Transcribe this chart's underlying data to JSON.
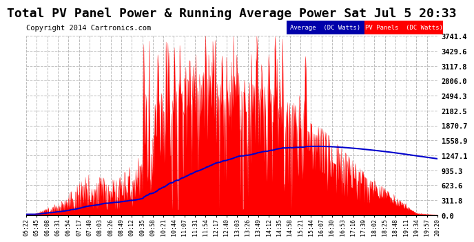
{
  "title": "Total PV Panel Power & Running Average Power Sat Jul 5 20:33",
  "copyright": "Copyright 2014 Cartronics.com",
  "ylabel_right_ticks": [
    0.0,
    311.8,
    623.6,
    935.3,
    1247.1,
    1558.9,
    1870.7,
    2182.5,
    2494.3,
    2806.0,
    3117.8,
    3429.6,
    3741.4
  ],
  "ymax": 3741.4,
  "bg_color": "#ffffff",
  "plot_bg_color": "#ffffff",
  "grid_color": "#bbbbbb",
  "pv_color": "#ff0000",
  "avg_color": "#0000cc",
  "legend_avg_label": "Average  (DC Watts)",
  "legend_pv_label": "PV Panels  (DC Watts)",
  "legend_avg_bg": "#0000aa",
  "legend_pv_bg": "#ff0000",
  "x_labels": [
    "05:22",
    "05:45",
    "06:08",
    "06:31",
    "06:54",
    "07:17",
    "07:40",
    "08:03",
    "08:26",
    "08:49",
    "09:12",
    "09:35",
    "09:58",
    "10:21",
    "10:44",
    "11:07",
    "11:31",
    "11:54",
    "12:17",
    "12:40",
    "13:03",
    "13:26",
    "13:49",
    "14:12",
    "14:35",
    "14:58",
    "15:21",
    "15:44",
    "16:07",
    "16:30",
    "16:53",
    "17:16",
    "17:39",
    "18:02",
    "18:25",
    "18:48",
    "19:11",
    "19:34",
    "19:57",
    "20:20"
  ],
  "title_fontsize": 13,
  "copyright_fontsize": 7.5
}
